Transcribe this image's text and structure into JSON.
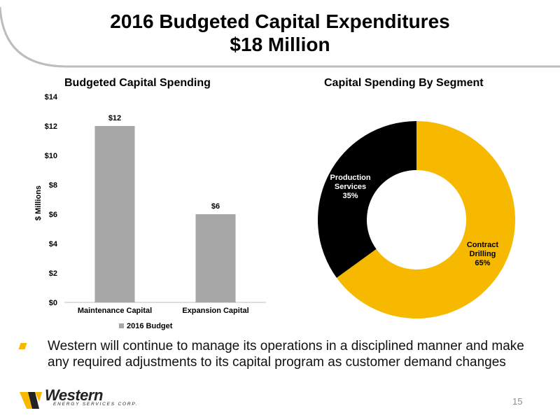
{
  "slide": {
    "title_line1": "2016 Budgeted Capital Expenditures",
    "title_line2": "$18 Million",
    "bullet": "Western will continue to manage its operations in a disciplined manner and make any required adjustments to its capital program as customer demand changes",
    "page_number": "15",
    "logo": {
      "word": "Western",
      "sub": "ENERGY SERVICES CORP."
    },
    "colors": {
      "accent": "#f7b900",
      "bar": "#a6a6a6",
      "dark": "#000000",
      "arc": "#bdbdbd"
    }
  },
  "chart_data": [
    {
      "type": "bar",
      "title": "Budgeted Capital Spending",
      "ylabel": "$ Millions",
      "xlabel": "",
      "categories": [
        "Maintenance Capital",
        "Expansion Capital"
      ],
      "series": [
        {
          "name": "2016 Budget",
          "values": [
            12,
            6
          ]
        }
      ],
      "data_labels": [
        "$12",
        "$6"
      ],
      "ylim": [
        0,
        14
      ],
      "yticks": [
        0,
        2,
        4,
        6,
        8,
        10,
        12,
        14
      ],
      "ytick_labels": [
        "$0",
        "$2",
        "$4",
        "$6",
        "$8",
        "$10",
        "$12",
        "$14"
      ],
      "grid": false,
      "legend": "bottom"
    },
    {
      "type": "pie",
      "title": "Capital Spending By Segment",
      "donut": true,
      "slices": [
        {
          "label_lines": [
            "Contract",
            "Drilling",
            "65%"
          ],
          "value": 65,
          "color": "#f7b900"
        },
        {
          "label_lines": [
            "Production",
            "Services",
            "35%"
          ],
          "value": 35,
          "color": "#000000"
        }
      ]
    }
  ]
}
